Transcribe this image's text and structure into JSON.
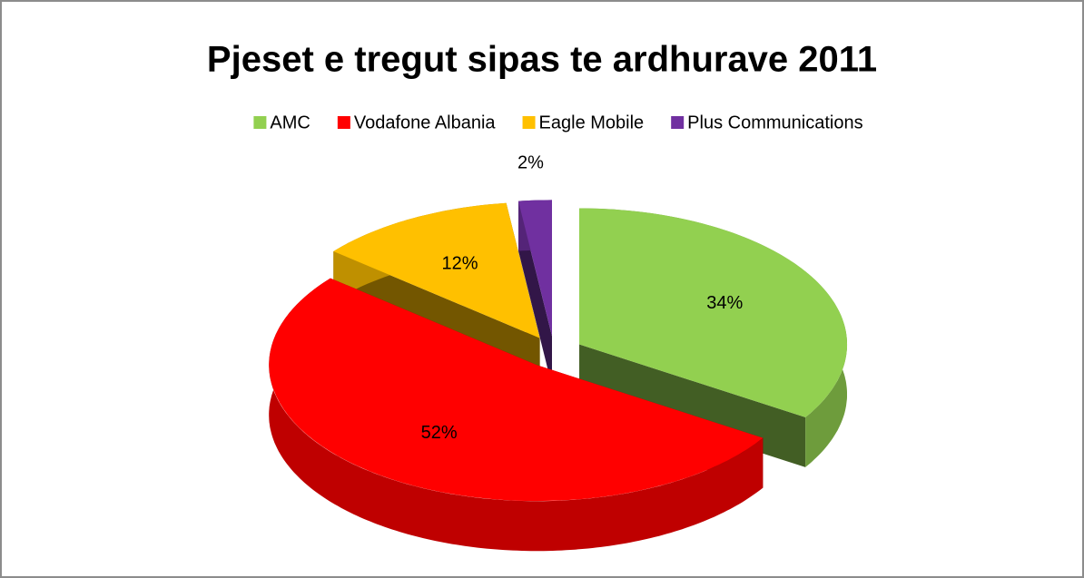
{
  "chart_data": {
    "type": "pie",
    "title": "Pjeset e tregut sipas te ardhurave 2011",
    "categories": [
      "AMC",
      "Vodafone Albania",
      "Eagle Mobile",
      "Plus Communications"
    ],
    "values": [
      34,
      52,
      12,
      2
    ],
    "value_labels": [
      "34%",
      "52%",
      "12%",
      "2%"
    ],
    "colors": [
      "#92d050",
      "#ff0000",
      "#ffc000",
      "#7030a0"
    ],
    "legend": "top"
  }
}
